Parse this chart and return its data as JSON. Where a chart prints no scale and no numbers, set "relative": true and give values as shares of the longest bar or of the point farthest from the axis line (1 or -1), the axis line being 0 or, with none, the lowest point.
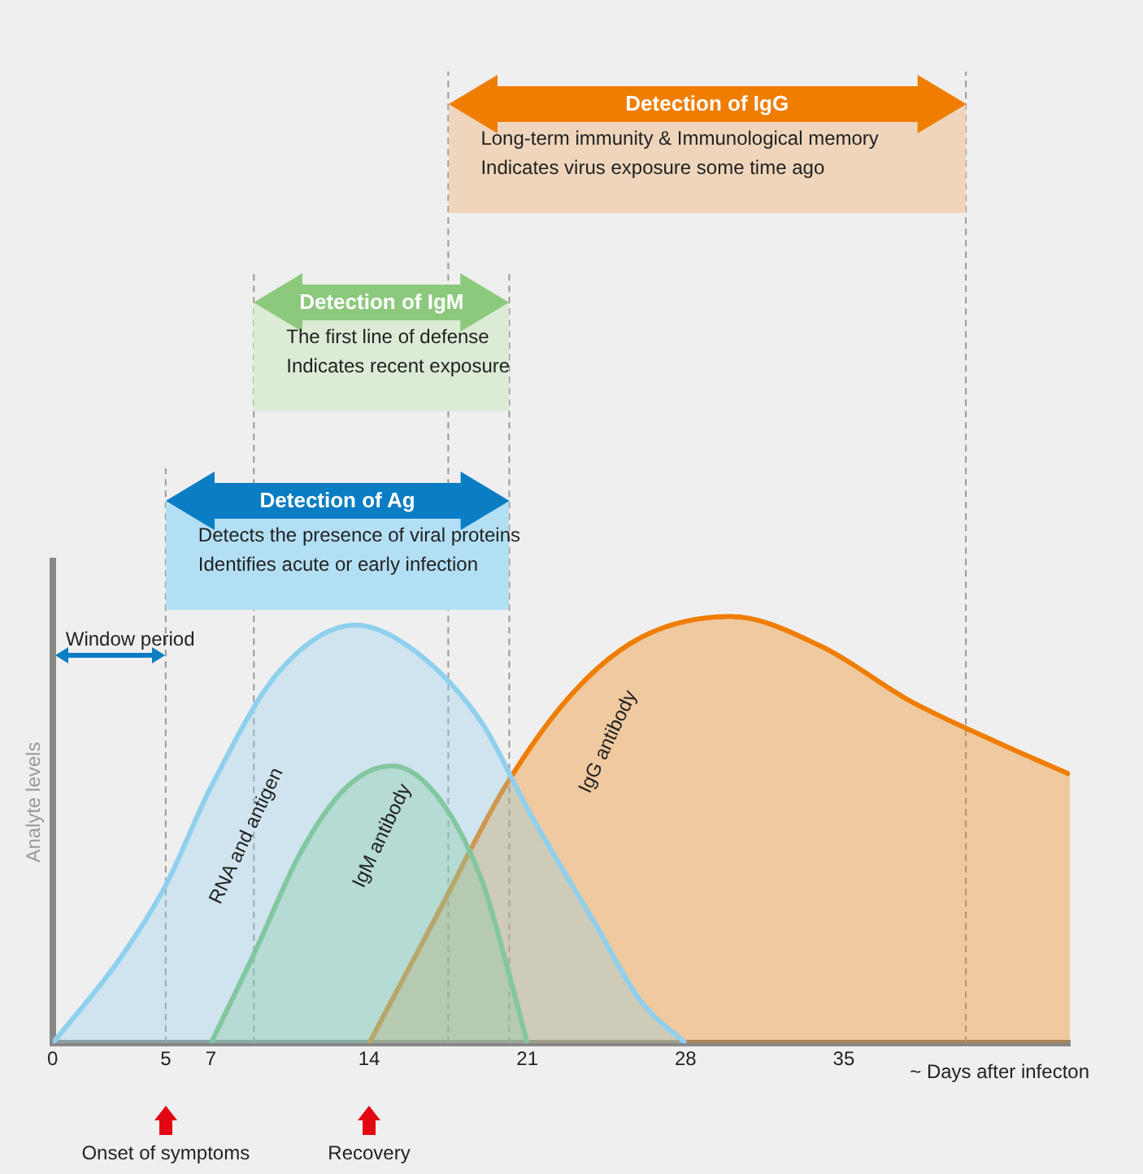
{
  "chart_data": {
    "type": "area",
    "relative": true,
    "ylabel": "Analyte levels",
    "xlabel": "~ Days after infecton",
    "xlim": [
      0,
      45
    ],
    "xticks": [
      0,
      5,
      7,
      14,
      21,
      28,
      35
    ],
    "tick_labels": "x",
    "legend": false,
    "grid": false,
    "series": [
      {
        "name": "RNA and antigen",
        "color": "#8fd0ee",
        "x": [
          0,
          3,
          5,
          7,
          10,
          13.4,
          16,
          19,
          21,
          24,
          26,
          28
        ],
        "values": [
          0,
          0.2,
          0.37,
          0.6,
          0.87,
          0.98,
          0.92,
          0.75,
          0.55,
          0.28,
          0.1,
          0
        ]
      },
      {
        "name": "IgM antibody",
        "color": "#7dc47a",
        "x": [
          7,
          9,
          11,
          13,
          15,
          17,
          19,
          20,
          21
        ],
        "values": [
          0,
          0.22,
          0.45,
          0.6,
          0.65,
          0.58,
          0.38,
          0.2,
          0
        ]
      },
      {
        "name": "IgG antibody",
        "color": "#ef7d00",
        "x": [
          14,
          17,
          20,
          23,
          26,
          30,
          34,
          38,
          42,
          45
        ],
        "values": [
          0,
          0.3,
          0.6,
          0.82,
          0.95,
          1,
          0.93,
          0.8,
          0.7,
          0.63
        ]
      }
    ],
    "ref_lines": [
      {
        "axis": "x",
        "value": 5,
        "color": "#999999",
        "line_style": "dashed"
      },
      {
        "axis": "x",
        "value": 8.9,
        "color": "#999999",
        "line_style": "dashed"
      },
      {
        "axis": "x",
        "value": 17.5,
        "color": "#999999",
        "line_style": "dashed"
      },
      {
        "axis": "x",
        "value": 20.2,
        "color": "#999999",
        "line_style": "dashed"
      },
      {
        "axis": "x",
        "value": 40.4,
        "color": "#999999",
        "line_style": "dashed"
      }
    ],
    "annotations": [
      "Detection of Ag",
      "Detects the presence of viral proteins",
      "Identifies acute or early infection",
      "Detection of IgM",
      "The first line of defense",
      "Indicates recent exposure",
      "Detection of IgG",
      "Long-term immunity & Immunological memory",
      "Indicates virus exposure some time ago",
      "Window period",
      "Onset of symptoms",
      "Recovery"
    ]
  }
}
